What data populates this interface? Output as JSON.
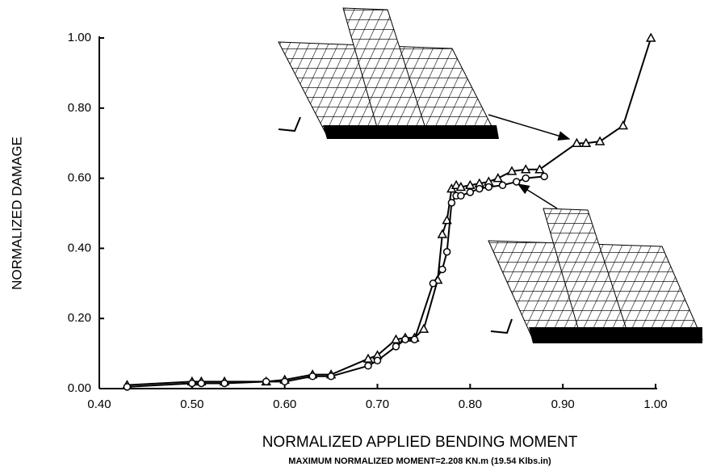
{
  "chart_data": {
    "type": "scatter",
    "xlabel": "NORMALIZED APPLIED BENDING MOMENT",
    "subtitle": "MAXIMUM NORMALIZED MOMENT=2.208 KN.m (19.54 Klbs.in)",
    "ylabel": "NORMALIZED DAMAGE",
    "xlim": [
      0.4,
      1.0
    ],
    "ylim": [
      0.0,
      1.0
    ],
    "xticks": [
      {
        "value": 0.4,
        "label": "0.40"
      },
      {
        "value": 0.5,
        "label": "0.50"
      },
      {
        "value": 0.6,
        "label": "0.60"
      },
      {
        "value": 0.7,
        "label": "0.70"
      },
      {
        "value": 0.8,
        "label": "0.80"
      },
      {
        "value": 0.9,
        "label": "0.90"
      },
      {
        "value": 1.0,
        "label": "1.00"
      }
    ],
    "yticks": [
      {
        "value": 0.0,
        "label": "0.00"
      },
      {
        "value": 0.2,
        "label": "0.20"
      },
      {
        "value": 0.4,
        "label": "0.40"
      },
      {
        "value": 0.6,
        "label": "0.60"
      },
      {
        "value": 0.8,
        "label": "0.80"
      },
      {
        "value": 1.0,
        "label": "1.00"
      }
    ],
    "series": [
      {
        "marker": "triangle",
        "color": "#000000",
        "x": [
          0.43,
          0.5,
          0.51,
          0.535,
          0.58,
          0.6,
          0.63,
          0.65,
          0.69,
          0.7,
          0.72,
          0.73,
          0.74,
          0.75,
          0.765,
          0.77,
          0.775,
          0.78,
          0.785,
          0.79,
          0.8,
          0.81,
          0.82,
          0.83,
          0.845,
          0.86,
          0.875,
          0.915,
          0.925,
          0.94,
          0.965,
          0.995
        ],
        "values": [
          0.01,
          0.02,
          0.02,
          0.02,
          0.02,
          0.025,
          0.04,
          0.04,
          0.085,
          0.095,
          0.14,
          0.145,
          0.145,
          0.17,
          0.31,
          0.44,
          0.48,
          0.57,
          0.58,
          0.575,
          0.58,
          0.585,
          0.59,
          0.6,
          0.62,
          0.625,
          0.625,
          0.7,
          0.7,
          0.705,
          0.75,
          1.0
        ]
      },
      {
        "marker": "circle",
        "color": "#000000",
        "x": [
          0.43,
          0.5,
          0.51,
          0.535,
          0.58,
          0.6,
          0.63,
          0.65,
          0.69,
          0.7,
          0.72,
          0.73,
          0.74,
          0.76,
          0.77,
          0.775,
          0.78,
          0.785,
          0.79,
          0.8,
          0.81,
          0.82,
          0.835,
          0.85,
          0.86,
          0.88
        ],
        "values": [
          0.005,
          0.015,
          0.015,
          0.015,
          0.02,
          0.02,
          0.035,
          0.035,
          0.065,
          0.08,
          0.12,
          0.14,
          0.14,
          0.3,
          0.34,
          0.39,
          0.53,
          0.55,
          0.55,
          0.56,
          0.57,
          0.575,
          0.58,
          0.59,
          0.6,
          0.605
        ]
      }
    ]
  }
}
